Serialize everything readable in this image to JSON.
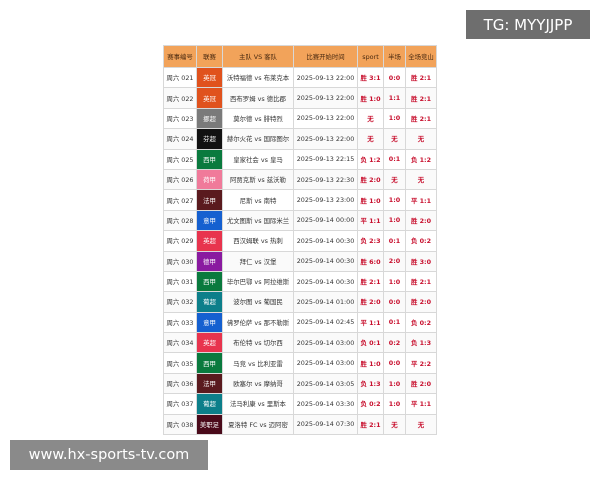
{
  "table": {
    "header": [
      "赛事编号",
      "联赛",
      "主队 VS 客队",
      "比赛开始时间",
      "sport",
      "半场",
      "全场竞山"
    ],
    "rows": [
      {
        "cells": [
          "周六 021",
          "英冠",
          "沃特福德 vs 布莱克本",
          "2025-09-13 22:00",
          "胜 3:1",
          "0:0",
          "胜 2:1"
        ],
        "league_color": "#e0521d"
      },
      {
        "cells": [
          "周六 022",
          "英冠",
          "西布罗姆 vs 德比郡",
          "2025-09-13 22:00",
          "胜 1:0",
          "1:1",
          "胜 2:1"
        ],
        "league_color": "#e0521d"
      },
      {
        "cells": [
          "周六 023",
          "挪超",
          "莫尔德 vs 腓特烈",
          "2025-09-13 22:00",
          "无",
          "1:0",
          "胜 2:1"
        ],
        "league_color": "#7a7a7a"
      },
      {
        "cells": [
          "周六 024",
          "芬超",
          "赫尔火花 vs 国际图尔",
          "2025-09-13 22:00",
          "无",
          "无",
          "无"
        ],
        "league_color": "#111111"
      },
      {
        "cells": [
          "周六 025",
          "西甲",
          "皇家社会 vs 皇马",
          "2025-09-13 22:15",
          "负 1:2",
          "0:1",
          "负 1:2"
        ],
        "league_color": "#0a7a3e"
      },
      {
        "cells": [
          "周六 026",
          "荷甲",
          "阿贾克斯 vs 兹沃勒",
          "2025-09-13 22:30",
          "胜 2:0",
          "无",
          "无"
        ],
        "league_color": "#f07a9a"
      },
      {
        "cells": [
          "周六 027",
          "法甲",
          "尼斯 vs 南特",
          "2025-09-13 23:00",
          "胜 1:0",
          "1:0",
          "平 1:1"
        ],
        "league_color": "#5a1a1e"
      },
      {
        "cells": [
          "周六 028",
          "意甲",
          "尤文图斯 vs 国际米兰",
          "2025-09-14 00:00",
          "平 1:1",
          "1:0",
          "胜 2:0"
        ],
        "league_color": "#1560d0"
      },
      {
        "cells": [
          "周六 029",
          "英超",
          "西汉姆联 vs 热刺",
          "2025-09-14 00:30",
          "负 2:3",
          "0:1",
          "负 0:2"
        ],
        "league_color": "#e8344e"
      },
      {
        "cells": [
          "周六 030",
          "德甲",
          "拜仁 vs 汉堡",
          "2025-09-14 00:30",
          "胜 6:0",
          "2:0",
          "胜 3:0"
        ],
        "league_color": "#8a1aa0"
      },
      {
        "cells": [
          "周六 031",
          "西甲",
          "毕尔巴鄂 vs 阿拉维斯",
          "2025-09-14 00:30",
          "胜 2:1",
          "1:0",
          "胜 2:1"
        ],
        "league_color": "#0a7a3e"
      },
      {
        "cells": [
          "周六 032",
          "葡超",
          "波尔图 vs 葡国民",
          "2025-09-14 01:00",
          "胜 2:0",
          "0:0",
          "胜 2:0"
        ],
        "league_color": "#0c7f8a"
      },
      {
        "cells": [
          "周六 033",
          "意甲",
          "佛罗伦萨 vs 那不勒斯",
          "2025-09-14 02:45",
          "平 1:1",
          "0:1",
          "负 0:2"
        ],
        "league_color": "#1560d0"
      },
      {
        "cells": [
          "周六 034",
          "英超",
          "布伦特 vs 切尔西",
          "2025-09-14 03:00",
          "负 0:1",
          "0:2",
          "负 1:3"
        ],
        "league_color": "#e8344e"
      },
      {
        "cells": [
          "周六 035",
          "西甲",
          "马竞 vs 比利亚雷",
          "2025-09-14 03:00",
          "胜 1:0",
          "0:0",
          "平 2:2"
        ],
        "league_color": "#0a7a3e"
      },
      {
        "cells": [
          "周六 036",
          "法甲",
          "欧塞尔 vs 摩纳哥",
          "2025-09-14 03:05",
          "负 1:3",
          "1:0",
          "胜 2:0"
        ],
        "league_color": "#5a1a1e"
      },
      {
        "cells": [
          "周六 037",
          "葡超",
          "法马利康 vs 里斯本",
          "2025-09-14 03:30",
          "负 0:2",
          "1:0",
          "平 1:1"
        ],
        "league_color": "#0c7f8a"
      },
      {
        "cells": [
          "周六 038",
          "美职足",
          "夏洛特 FC vs 迈阿密",
          "2025-09-14 07:30",
          "胜 2:1",
          "无",
          "无"
        ],
        "league_color": "#4a0a1a"
      }
    ]
  },
  "overlays": {
    "tg": "TG: MYYJJPP",
    "site": "www.hx-sports-tv.com"
  }
}
